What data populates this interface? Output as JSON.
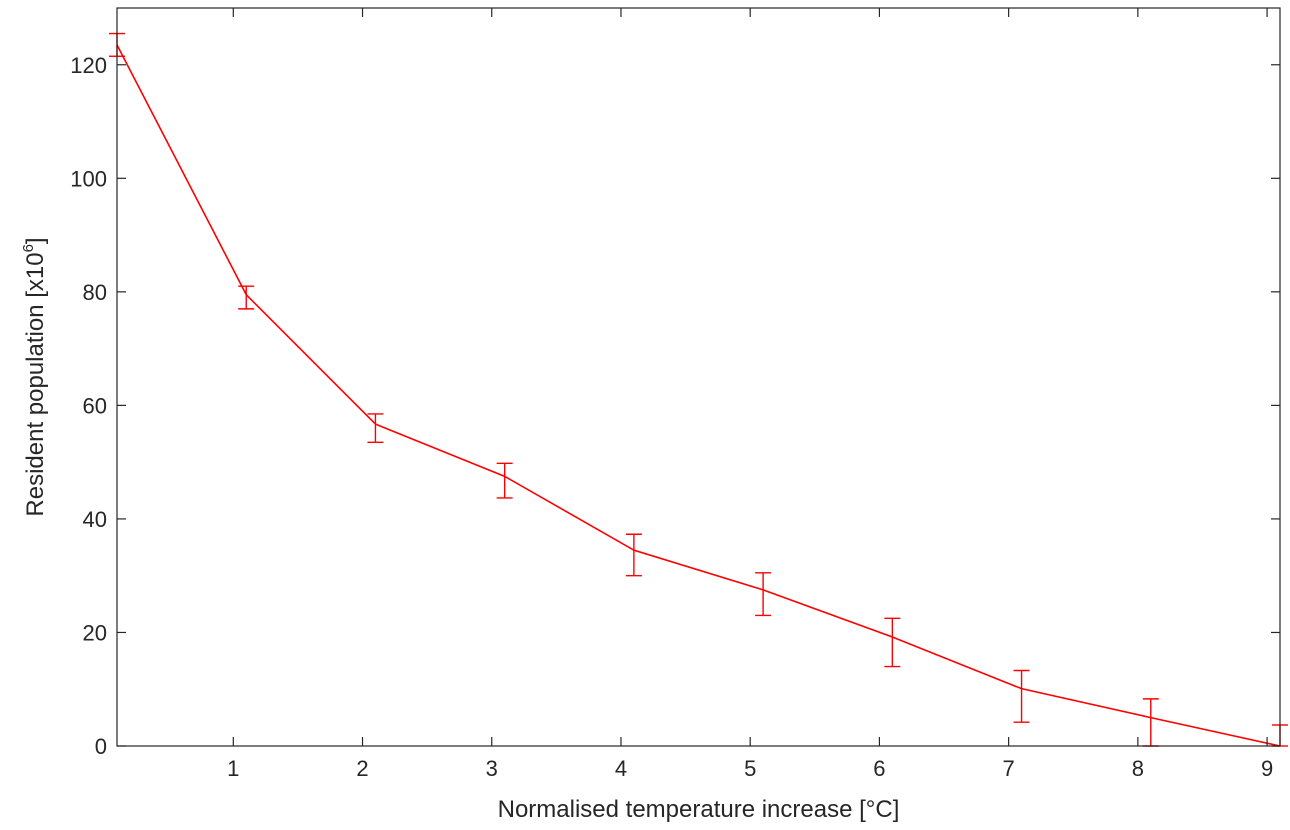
{
  "chart_data": {
    "type": "line",
    "title": "",
    "xlabel": "Normalised temperature increase [°C]",
    "ylabel_main": "Resident  population  [x10",
    "ylabel_sup": "6",
    "ylabel_close": "]",
    "xlim": [
      0.1,
      9.1
    ],
    "ylim": [
      0,
      130
    ],
    "xticks": [
      1,
      2,
      3,
      4,
      5,
      6,
      7,
      8,
      9
    ],
    "xtick_labels": [
      "1",
      "2",
      "3",
      "4",
      "5",
      "6",
      "7",
      "8",
      "9"
    ],
    "yticks": [
      0,
      20,
      40,
      60,
      80,
      100,
      120
    ],
    "ytick_labels": [
      "0",
      "20",
      "40",
      "60",
      "80",
      "100",
      "120"
    ],
    "grid": false,
    "box": true,
    "series": [
      {
        "color": "#ff0000",
        "x": [
          0.1,
          1.1,
          2.1,
          3.1,
          4.1,
          5.1,
          6.1,
          7.1,
          8.1,
          9.1
        ],
        "y": [
          123.5,
          79.5,
          56.7,
          47.5,
          34.5,
          27.5,
          19.2,
          10.1,
          5.0,
          0.0
        ],
        "y_lower": [
          121.5,
          77.0,
          53.5,
          43.7,
          30.0,
          23.0,
          14.0,
          4.2,
          0.0,
          0.0
        ],
        "y_upper": [
          125.5,
          81.0,
          58.5,
          49.8,
          37.3,
          30.5,
          22.5,
          13.3,
          8.3,
          3.7
        ]
      }
    ]
  }
}
